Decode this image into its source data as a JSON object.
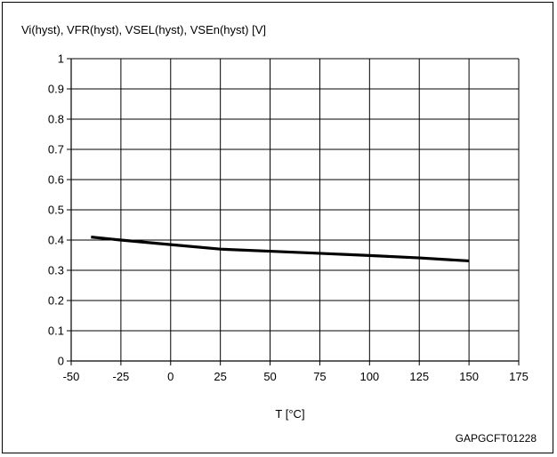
{
  "chart_data": {
    "type": "line",
    "title": "Vi(hyst), VFR(hyst), VSEL(hyst), VSEn(hyst) [V]",
    "xlabel": "T [°C]",
    "ylabel": "",
    "xlim": [
      -50,
      175
    ],
    "ylim": [
      0,
      1
    ],
    "x_ticks": [
      -50,
      -25,
      0,
      25,
      50,
      75,
      100,
      125,
      150,
      175
    ],
    "x_tick_labels": [
      "-50",
      "-25",
      "0",
      "25",
      "50",
      "75",
      "100",
      "125",
      "150",
      "175"
    ],
    "y_ticks": [
      0,
      0.1,
      0.2,
      0.3,
      0.4,
      0.5,
      0.6,
      0.7,
      0.8,
      0.9,
      1
    ],
    "y_tick_labels": [
      "0",
      "0.1",
      "0.2",
      "0.3",
      "0.4",
      "0.5",
      "0.6",
      "0.7",
      "0.8",
      "0.9",
      "1"
    ],
    "grid": true,
    "series": [
      {
        "x": [
          -40,
          -25,
          0,
          25,
          50,
          75,
          100,
          125,
          150
        ],
        "y": [
          0.41,
          0.4,
          0.385,
          0.37,
          0.363,
          0.356,
          0.349,
          0.341,
          0.331
        ],
        "color": "#000000"
      }
    ],
    "figure_code": "GAPGCFT01228"
  }
}
